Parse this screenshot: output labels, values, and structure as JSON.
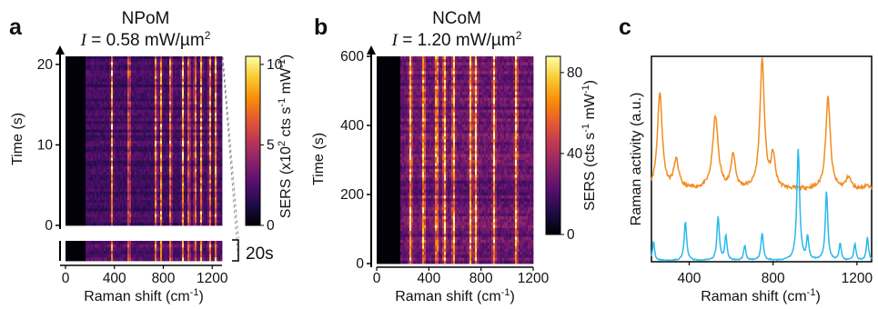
{
  "panels": {
    "a": {
      "letter": "a",
      "title": "NPoM",
      "intensity_symbol": "I",
      "intensity_text": " = 0.58 mW/µm",
      "intensity_sup": "2"
    },
    "b": {
      "letter": "b",
      "title": "NCoM",
      "intensity_symbol": "I",
      "intensity_text": " = 1.20 mW/µm",
      "intensity_sup": "2"
    },
    "c": {
      "letter": "c"
    }
  },
  "colors": {
    "orange": "#f28c1e",
    "cyan": "#2ab8ec",
    "black": "#000000",
    "inferno": [
      "#000004",
      "#1f0c48",
      "#550f6d",
      "#88226a",
      "#ba3655",
      "#e35933",
      "#f98c0a",
      "#f9c932",
      "#fcffa4"
    ]
  },
  "chart_data": [
    {
      "type": "heatmap",
      "panel": "a",
      "title": "NPoM",
      "subtitle": "I = 0.58 mW/µm2",
      "xlabel": "Raman shift (cm-1)",
      "ylabel": "Time (s)",
      "xlim": [
        0,
        1280
      ],
      "ylim": [
        0,
        21
      ],
      "x_ticks": [
        0,
        400,
        800,
        1200
      ],
      "y_ticks": [
        0,
        10,
        20
      ],
      "bright_lines_cm1": [
        380,
        520,
        740,
        780,
        860,
        960,
        1010,
        1060,
        1110,
        1180,
        1230
      ],
      "dark_region_cm1": [
        0,
        160
      ],
      "inset_label": "20s",
      "colorbar": {
        "label": "SERS (x10",
        "label_sup": "2",
        "label_mid": " cts s",
        "label_sup2": "-1",
        "label_mid2": " mW",
        "label_sup3": "-1",
        "label_end": ")",
        "ticks": [
          0,
          5,
          10
        ],
        "range": [
          0,
          10.5
        ],
        "colormap": "inferno"
      }
    },
    {
      "type": "heatmap",
      "panel": "b",
      "title": "NCoM",
      "subtitle": "I = 1.20 mW/µm2",
      "xlabel": "Raman shift (cm-1)",
      "ylabel": "Time (s)",
      "xlim": [
        0,
        1200
      ],
      "ylim": [
        0,
        600
      ],
      "x_ticks": [
        0,
        400,
        800,
        1200
      ],
      "y_ticks": [
        0,
        200,
        400,
        600
      ],
      "bright_lines_cm1": [
        260,
        360,
        460,
        520,
        590,
        720,
        760,
        900,
        1070
      ],
      "dark_region_cm1": [
        0,
        180
      ],
      "colorbar": {
        "label": "SERS (cts s",
        "label_sup": "-1",
        "label_mid": " mW",
        "label_sup2": "-1",
        "label_end": ")",
        "ticks": [
          0,
          40,
          80
        ],
        "range": [
          0,
          88
        ],
        "colormap": "inferno"
      }
    },
    {
      "type": "line",
      "panel": "c",
      "xlabel": "Raman shift (cm-1)",
      "ylabel": "Raman activity  (a.u.)",
      "xlim": [
        220,
        1270
      ],
      "x_ticks": [
        400,
        800,
        1200
      ],
      "series": [
        {
          "color": "#f28c1e",
          "baseline": 0.36,
          "peaks": [
            [
              260,
              0.84,
              14
            ],
            [
              338,
              0.5,
              14
            ],
            [
              525,
              0.72,
              16
            ],
            [
              610,
              0.53,
              12
            ],
            [
              748,
              1.0,
              13
            ],
            [
              800,
              0.52,
              12
            ],
            [
              1062,
              0.82,
              13
            ],
            [
              1160,
              0.42,
              14
            ],
            [
              1245,
              0.38,
              14
            ]
          ]
        },
        {
          "color": "#2ab8ec",
          "baseline": 0.005,
          "peaks": [
            [
              230,
              0.1,
              6
            ],
            [
              382,
              0.2,
              7
            ],
            [
              538,
              0.22,
              7
            ],
            [
              575,
              0.13,
              6
            ],
            [
              665,
              0.08,
              6
            ],
            [
              748,
              0.14,
              7
            ],
            [
              920,
              0.56,
              8
            ],
            [
              965,
              0.12,
              6
            ],
            [
              1055,
              0.35,
              7
            ],
            [
              1120,
              0.09,
              6
            ],
            [
              1190,
              0.09,
              6
            ],
            [
              1250,
              0.12,
              6
            ]
          ]
        }
      ]
    }
  ]
}
